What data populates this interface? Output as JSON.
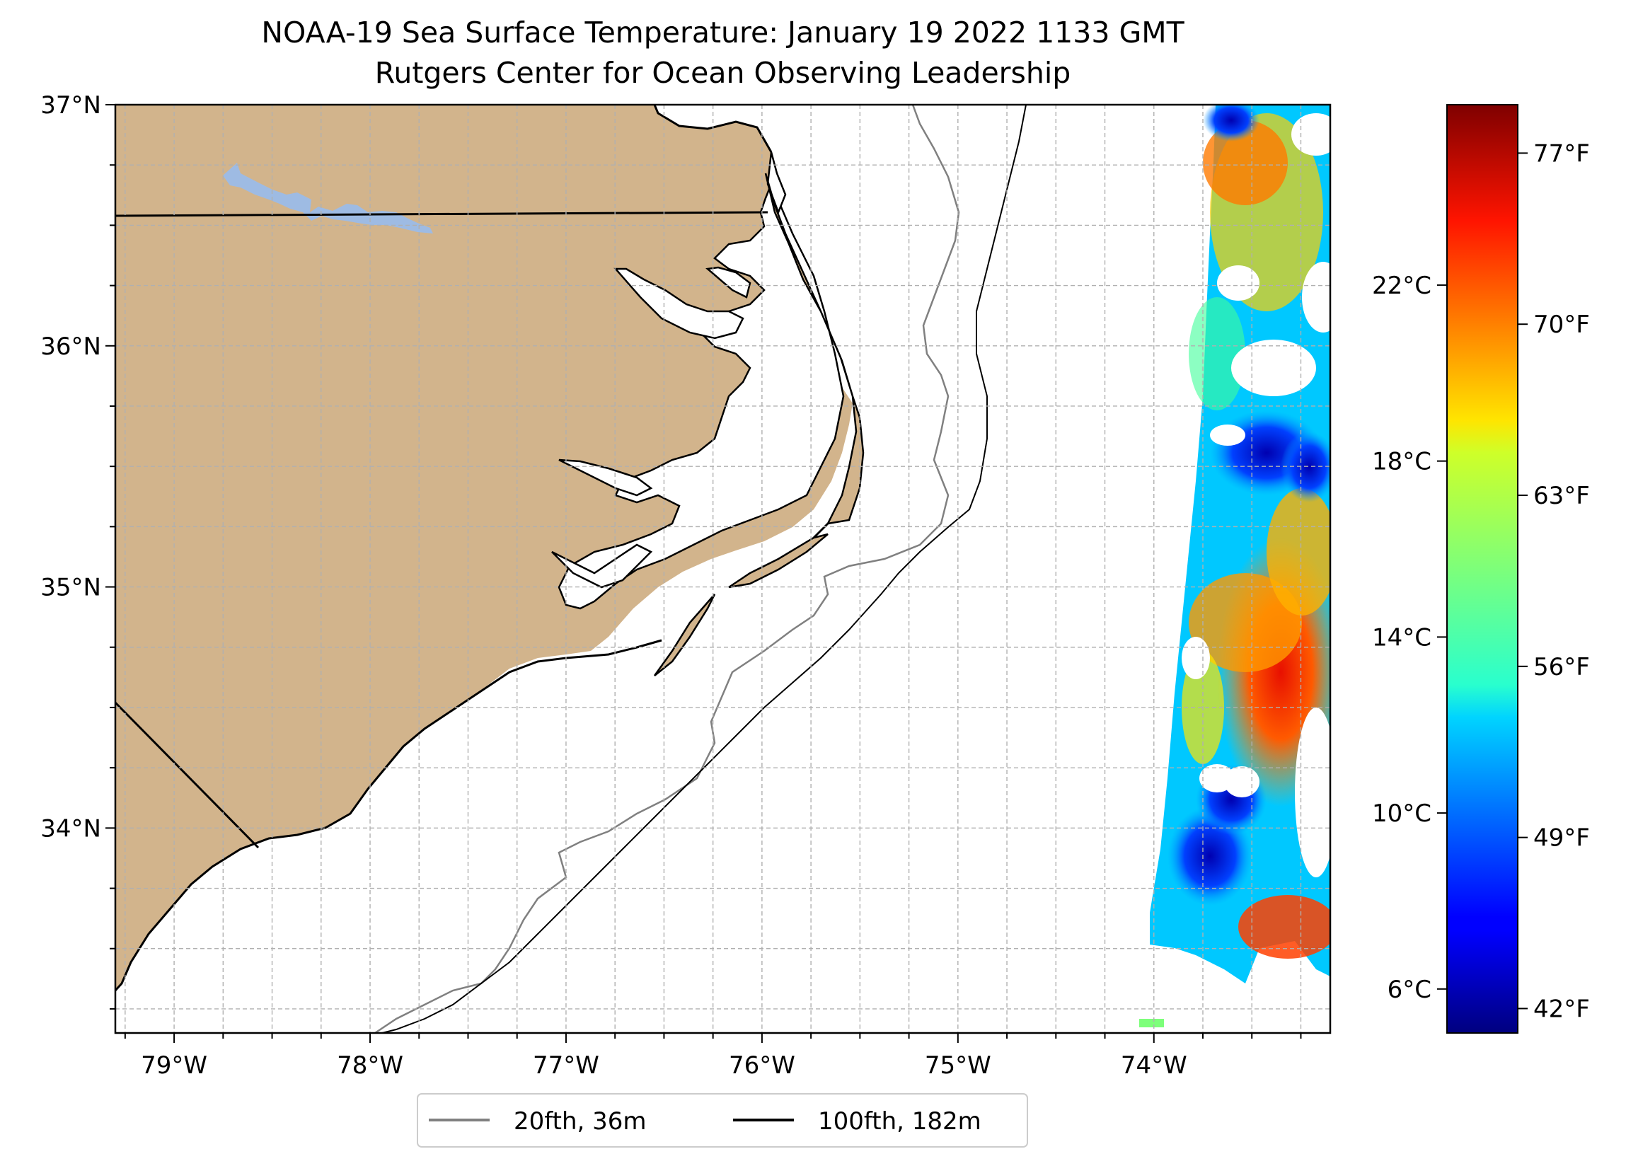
{
  "title": {
    "line1": "NOAA-19 Sea Surface Temperature: January 19 2022 1133 GMT",
    "line2": "Rutgers Center for Ocean Observing Leadership"
  },
  "map": {
    "lon_range": [
      -79.3,
      -73.1
    ],
    "lat_range": [
      33.15,
      37.0
    ],
    "lon_ticks": [
      {
        "lon": -79,
        "label": "79°W"
      },
      {
        "lon": -78,
        "label": "78°W"
      },
      {
        "lon": -77,
        "label": "77°W"
      },
      {
        "lon": -76,
        "label": "76°W"
      },
      {
        "lon": -75,
        "label": "75°W"
      },
      {
        "lon": -74,
        "label": "74°W"
      }
    ],
    "lat_ticks": [
      {
        "lat": 37,
        "label": "37°N"
      },
      {
        "lat": 36,
        "label": "36°N"
      },
      {
        "lat": 35,
        "label": "35°N"
      },
      {
        "lat": 34,
        "label": "34°N"
      }
    ],
    "gridlines": "dashed",
    "land_color": "#d2b48c",
    "lake_color": "#9ebbe3"
  },
  "legend": {
    "placement": "below",
    "items": [
      {
        "label": "20fth, 36m",
        "color": "#808080"
      },
      {
        "label": "100fth, 182m",
        "color": "#000000"
      }
    ]
  },
  "colorbar": {
    "colormap": "jet",
    "celsius_ticks": [
      {
        "value": 6,
        "label": "6°C"
      },
      {
        "value": 10,
        "label": "10°C"
      },
      {
        "value": 14,
        "label": "14°C"
      },
      {
        "value": 18,
        "label": "18°C"
      },
      {
        "value": 22,
        "label": "22°C"
      }
    ],
    "fahrenheit_ticks": [
      {
        "value": 42,
        "label": "42°F"
      },
      {
        "value": 49,
        "label": "49°F"
      },
      {
        "value": 56,
        "label": "56°F"
      },
      {
        "value": 63,
        "label": "63°F"
      },
      {
        "value": 70,
        "label": "70°F"
      },
      {
        "value": 77,
        "label": "77°F"
      }
    ]
  }
}
